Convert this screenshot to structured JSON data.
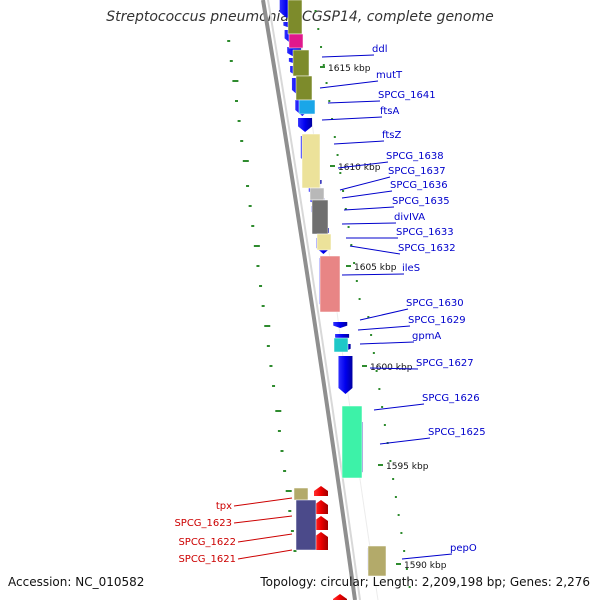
{
  "title": "Streptococcus pneumoniae CGSP14, complete genome",
  "accession": "Accession: NC_010582",
  "topology": "Topology: circular; Length: 2,209,198 bp; Genes: 2,276",
  "colors": {
    "forward_strand": "#0000ee",
    "reverse_strand": "#ee0000",
    "backbone": "#8f8f8f",
    "tick": "#2e8b2e"
  },
  "scale": [
    {
      "label": "1615 kbp",
      "pos": 1615
    },
    {
      "label": "1610 kbp",
      "pos": 1610
    },
    {
      "label": "1605 kbp",
      "pos": 1605
    },
    {
      "label": "1600 kbp",
      "pos": 1600
    },
    {
      "label": "1595 kbp",
      "pos": 1595
    },
    {
      "label": "1590 kbp",
      "pos": 1590
    }
  ],
  "forward_genes": [
    {
      "label": "ddl"
    },
    {
      "label": "mutT"
    },
    {
      "label": "SPCG_1641"
    },
    {
      "label": "ftsA"
    },
    {
      "label": "ftsZ"
    },
    {
      "label": "SPCG_1638"
    },
    {
      "label": "SPCG_1637"
    },
    {
      "label": "SPCG_1636"
    },
    {
      "label": "SPCG_1635"
    },
    {
      "label": "divIVA"
    },
    {
      "label": "SPCG_1633"
    },
    {
      "label": "SPCG_1632"
    },
    {
      "label": "ileS"
    },
    {
      "label": "SPCG_1630"
    },
    {
      "label": "SPCG_1629"
    },
    {
      "label": "gpmA"
    },
    {
      "label": "SPCG_1627"
    },
    {
      "label": "SPCG_1626"
    },
    {
      "label": "SPCG_1625"
    },
    {
      "label": "pepO"
    }
  ],
  "reverse_genes": [
    {
      "label": "tpx"
    },
    {
      "label": "SPCG_1623"
    },
    {
      "label": "SPCG_1622"
    },
    {
      "label": "SPCG_1621"
    }
  ]
}
